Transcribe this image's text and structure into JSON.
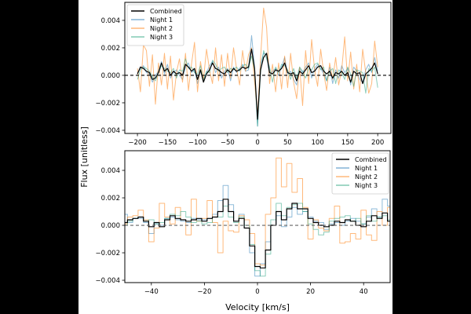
{
  "chart_data": {
    "type": "line",
    "shared_ylabel": "Flux [unitless]",
    "xlabel": "Velocity [km/s]",
    "value_multiplier": 0.001,
    "series_colors": {
      "Combined": "#000000",
      "Night 1": "#1f77b4",
      "Night 2": "#ff7f0e",
      "Night 3": "#1b9e77"
    },
    "panels": [
      {
        "xlim": [
          -221,
          222
        ],
        "ylim": [
          -0.00423,
          0.00531
        ],
        "xticks": [
          -200,
          -150,
          -100,
          -50,
          0,
          50,
          100,
          150,
          200
        ],
        "yticks": [
          -0.004,
          -0.002,
          0.0,
          0.002,
          0.004
        ],
        "ytick_labels": [
          "−0.004",
          "−0.002",
          "0.000",
          "0.002",
          "0.004"
        ],
        "xtick_labels": [
          "−200",
          "−150",
          "−100",
          "−50",
          "0",
          "50",
          "100",
          "150",
          "200"
        ],
        "legend_placement": "top-left",
        "reference_line": 0,
        "step_plot": false,
        "x": {
          "start": -200,
          "step": 5
        },
        "series": [
          {
            "name": "Combined",
            "values": [
              0.1,
              0.6,
              0.5,
              0.3,
              0.2,
              -0.3,
              -0.2,
              0.2,
              0.9,
              0.3,
              0.5,
              0.0,
              0.3,
              0.1,
              0.2,
              0.0,
              0.8,
              0.6,
              0.3,
              0.5,
              -0.3,
              0.4,
              -0.5,
              0.1,
              0.4,
              0.9,
              0.5,
              0.4,
              0.2,
              0.1,
              0.4,
              0.2,
              0.5,
              0.3,
              0.4,
              0.6,
              0.5,
              0.6,
              1.9,
              0.5,
              -3.2,
              0.4,
              1.3,
              1.6,
              0.2,
              0.1,
              0.4,
              0.3,
              0.5,
              0.9,
              0.2,
              0.1,
              0.2,
              -0.4,
              0.3,
              0.1,
              0.4,
              0.7,
              0.2,
              0.3,
              0.6,
              0.7,
              0.3,
              0.1,
              0.3,
              -0.2,
              0.2,
              0.1,
              0.3,
              0.0,
              0.2,
              -0.5,
              0.3,
              0.1,
              0.2,
              -0.6,
              0.1,
              0.3,
              0.5,
              0.9,
              0.1
            ]
          },
          {
            "name": "Night 1",
            "values": [
              0.2,
              0.5,
              0.7,
              0.2,
              0.1,
              -0.5,
              0.0,
              0.3,
              1.0,
              0.1,
              0.8,
              -0.2,
              0.2,
              0.4,
              0.0,
              -0.3,
              0.6,
              0.9,
              0.2,
              0.4,
              -0.6,
              0.3,
              -0.3,
              0.2,
              0.7,
              1.0,
              0.2,
              0.6,
              -0.2,
              0.3,
              0.5,
              -0.4,
              0.6,
              0.2,
              0.5,
              0.8,
              0.3,
              0.4,
              2.9,
              0.6,
              -3.7,
              0.8,
              1.6,
              1.5,
              -0.1,
              0.3,
              0.5,
              0.0,
              0.6,
              1.3,
              0.1,
              0.3,
              -0.3,
              -0.7,
              0.5,
              0.2,
              0.6,
              0.9,
              -0.2,
              0.5,
              0.8,
              0.5,
              0.1,
              -0.4,
              0.6,
              -0.6,
              0.4,
              -0.2,
              0.7,
              0.2,
              0.5,
              -0.7,
              0.6,
              0.3,
              -0.3,
              -0.5,
              0.4,
              0.8,
              0.2,
              1.3,
              0.3
            ]
          },
          {
            "name": "Night 2",
            "values": [
              0.5,
              -1.2,
              2.2,
              1.8,
              -0.8,
              1.5,
              -2.1,
              0.9,
              -0.7,
              1.6,
              -1.0,
              1.4,
              -1.8,
              0.2,
              1.2,
              -0.5,
              1.6,
              -1.1,
              0.8,
              2.4,
              -1.2,
              1.0,
              -0.3,
              1.9,
              0.4,
              -0.6,
              2.0,
              -0.4,
              1.5,
              -0.8,
              1.6,
              -0.2,
              2.0,
              0.5,
              -0.7,
              1.8,
              0.3,
              1.5,
              2.0,
              -0.5,
              -2.9,
              1.2,
              4.9,
              3.5,
              -0.6,
              0.8,
              -1.2,
              0.9,
              -1.0,
              1.4,
              -0.9,
              1.6,
              -0.5,
              -1.7,
              0.6,
              -2.2,
              1.8,
              -0.6,
              2.6,
              0.4,
              -0.8,
              1.9,
              0.2,
              -1.1,
              0.9,
              -0.3,
              1.3,
              -0.7,
              0.4,
              2.8,
              -0.4,
              1.7,
              -1.0,
              0.8,
              -1.2,
              1.9,
              0.2,
              -1.3,
              -0.6,
              2.5,
              0.6
            ]
          },
          {
            "name": "Night 3",
            "values": [
              -0.3,
              0.4,
              0.6,
              0.5,
              0.3,
              -0.1,
              -0.4,
              0.2,
              0.7,
              0.5,
              0.3,
              0.2,
              0.5,
              -0.2,
              0.4,
              0.3,
              1.2,
              0.5,
              0.6,
              0.2,
              0.1,
              0.7,
              -0.4,
              0.3,
              0.2,
              1.1,
              0.8,
              0.3,
              0.5,
              0.6,
              0.2,
              0.5,
              0.4,
              0.6,
              0.3,
              0.7,
              0.8,
              0.5,
              1.4,
              0.4,
              -3.7,
              0.2,
              1.8,
              1.2,
              0.6,
              -0.5,
              0.6,
              0.2,
              0.8,
              0.7,
              0.4,
              -0.3,
              0.5,
              -0.2,
              0.6,
              0.3,
              -0.2,
              0.5,
              0.4,
              0.8,
              0.9,
              0.4,
              0.6,
              -0.4,
              0.3,
              0.5,
              -0.6,
              0.4,
              0.2,
              -0.3,
              0.6,
              0.1,
              -0.8,
              0.4,
              0.3,
              0.2,
              -1.3,
              0.5,
              0.3,
              0.6,
              -0.9
            ]
          }
        ]
      },
      {
        "xlim": [
          -50,
          50
        ],
        "ylim": [
          -0.00417,
          0.00543
        ],
        "xticks": [
          -40,
          -20,
          0,
          20,
          40
        ],
        "xtick_labels": [
          "−40",
          "−20",
          "0",
          "20",
          "40"
        ],
        "yticks": [
          -0.004,
          -0.002,
          0.0,
          0.002,
          0.004
        ],
        "ytick_labels": [
          "−0.004",
          "−0.002",
          "0.000",
          "0.002",
          "0.004"
        ],
        "legend_placement": "top-right",
        "reference_line": 0,
        "step_plot": true,
        "x": {
          "start": -50,
          "step": 2
        },
        "series": [
          {
            "name": "Combined",
            "values": [
              0.2,
              0.4,
              0.5,
              0.6,
              0.3,
              -0.1,
              0.2,
              -0.1,
              0.4,
              0.7,
              0.5,
              0.4,
              0.3,
              0.4,
              0.5,
              0.3,
              0.5,
              0.6,
              1.0,
              1.9,
              1.0,
              0.3,
              0.5,
              -0.2,
              -1.5,
              -3.0,
              -3.1,
              -1.8,
              0.0,
              1.0,
              0.4,
              1.2,
              1.6,
              1.2,
              1.2,
              0.5,
              0.2,
              0.0,
              -0.1,
              0.0,
              0.3,
              0.2,
              0.4,
              0.3,
              0.0,
              -0.1,
              0.3,
              0.7,
              0.5,
              0.9,
              0.3
            ]
          },
          {
            "name": "Night 1",
            "values": [
              0.8,
              0.2,
              0.5,
              0.5,
              0.2,
              -0.6,
              0.1,
              0.0,
              0.5,
              0.6,
              0.4,
              0.3,
              0.2,
              0.5,
              0.4,
              0.4,
              0.5,
              0.8,
              1.8,
              2.9,
              1.5,
              0.3,
              0.8,
              -0.2,
              -2.0,
              -3.7,
              -2.8,
              -1.2,
              0.0,
              0.7,
              -0.1,
              0.6,
              1.3,
              0.8,
              1.0,
              0.6,
              0.3,
              0.2,
              -0.3,
              0.1,
              0.2,
              0.0,
              0.3,
              0.5,
              0.3,
              0.1,
              0.6,
              1.2,
              0.6,
              1.9,
              1.4
            ]
          },
          {
            "name": "Night 2",
            "values": [
              0.1,
              0.6,
              0.7,
              1.1,
              0.4,
              -1.2,
              -0.2,
              1.6,
              0.6,
              0.1,
              1.3,
              0.4,
              -0.7,
              1.9,
              0.3,
              0.5,
              1.8,
              0.2,
              -2.0,
              0.3,
              -0.4,
              -0.5,
              0.7,
              0.4,
              -0.6,
              -2.8,
              -2.9,
              0.8,
              2.0,
              4.9,
              2.8,
              4.5,
              2.4,
              3.4,
              1.3,
              -1.0,
              0.4,
              -0.2,
              -0.4,
              0.5,
              1.4,
              -1.3,
              -1.2,
              -0.6,
              -1.0,
              1.1,
              -0.7,
              -1.1,
              1.0,
              0.0,
              1.3
            ]
          },
          {
            "name": "Night 3",
            "values": [
              0.0,
              0.3,
              0.5,
              0.6,
              0.3,
              0.4,
              0.1,
              0.2,
              0.5,
              0.8,
              0.7,
              1.0,
              0.6,
              0.2,
              0.3,
              0.1,
              0.2,
              0.6,
              0.6,
              1.4,
              0.6,
              0.2,
              0.6,
              0.0,
              -1.4,
              -3.3,
              -3.7,
              -2.1,
              0.4,
              1.6,
              0.7,
              1.3,
              1.5,
              1.6,
              1.0,
              0.1,
              -0.3,
              -0.7,
              -0.5,
              0.3,
              0.5,
              0.6,
              0.7,
              0.3,
              0.5,
              0.1,
              0.7,
              0.3,
              0.6,
              0.7,
              0.4
            ]
          }
        ]
      }
    ]
  }
}
